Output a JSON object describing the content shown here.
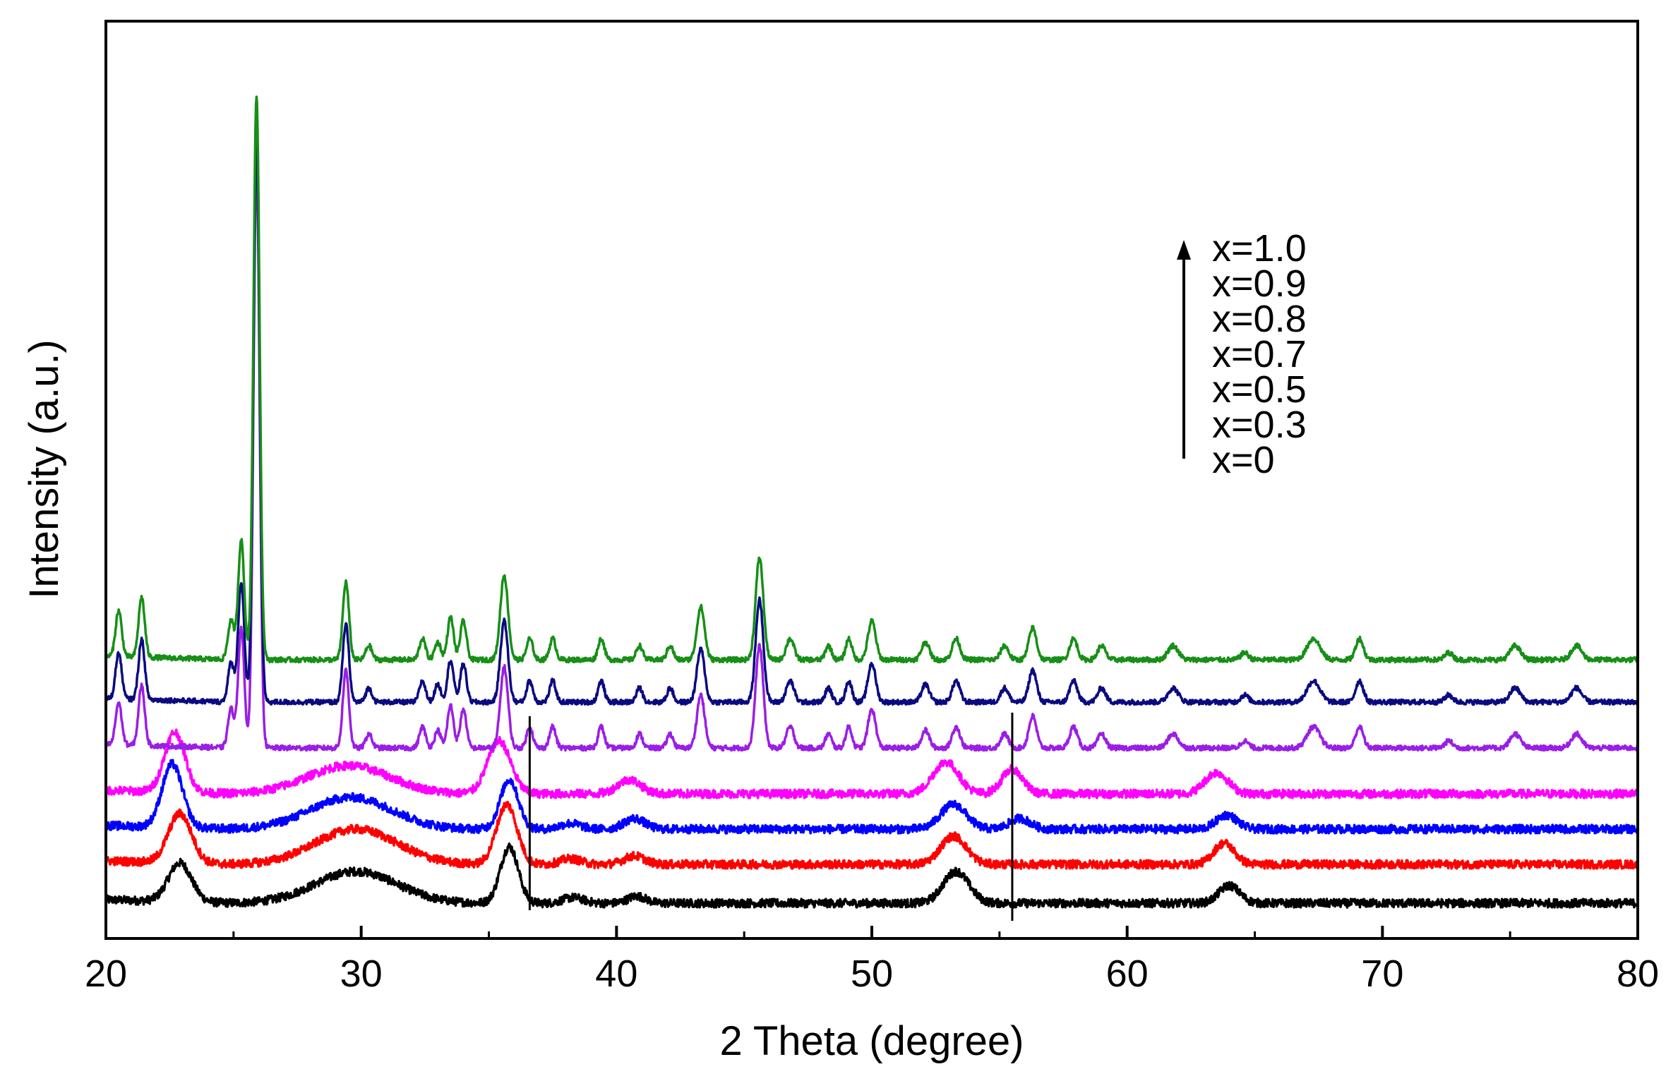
{
  "chart_data": {
    "type": "line",
    "xlabel": "2 Theta (degree)",
    "ylabel": "Intensity (a.u.)",
    "xlim": [
      20,
      80
    ],
    "x_ticks": [
      "20",
      "30",
      "40",
      "50",
      "60",
      "70",
      "80"
    ],
    "y_ticks": [],
    "grid": false,
    "legend_position": "top-right",
    "legend_arrow": "up",
    "legend_entries": [
      "x=1.0",
      "x=0.9",
      "x=0.8",
      "x=0.7",
      "x=0.5",
      "x=0.3",
      "x=0"
    ],
    "reference_lines_x": [
      36.6,
      55.5
    ],
    "series": [
      {
        "name": "x=0",
        "color": "#000000",
        "baseline": 0.0,
        "profile": "amorphous",
        "peaks": [
          [
            22.9,
            0.55,
            0.45
          ],
          [
            29.8,
            0.45,
            1.6
          ],
          [
            35.8,
            0.8,
            0.35
          ],
          [
            38.3,
            0.08,
            0.4
          ],
          [
            40.8,
            0.1,
            0.35
          ],
          [
            53.3,
            0.45,
            0.5
          ],
          [
            64.0,
            0.25,
            0.4
          ]
        ]
      },
      {
        "name": "x=0.3",
        "color": "#ff0000",
        "baseline": 0.55,
        "profile": "amorphous",
        "peaks": [
          [
            22.9,
            0.7,
            0.45
          ],
          [
            29.8,
            0.5,
            1.6
          ],
          [
            35.7,
            0.85,
            0.4
          ],
          [
            38.2,
            0.08,
            0.4
          ],
          [
            40.7,
            0.12,
            0.4
          ],
          [
            53.2,
            0.4,
            0.5
          ],
          [
            63.8,
            0.3,
            0.4
          ]
        ]
      },
      {
        "name": "x=0.5",
        "color": "#0000ff",
        "baseline": 1.05,
        "profile": "amorphous",
        "peaks": [
          [
            22.6,
            0.9,
            0.4
          ],
          [
            29.6,
            0.45,
            1.6
          ],
          [
            35.8,
            0.7,
            0.35
          ],
          [
            38.2,
            0.08,
            0.4
          ],
          [
            40.7,
            0.15,
            0.4
          ],
          [
            53.2,
            0.35,
            0.5
          ],
          [
            55.8,
            0.15,
            0.4
          ],
          [
            63.9,
            0.2,
            0.4
          ]
        ]
      },
      {
        "name": "x=0.7",
        "color": "#ff00ff",
        "baseline": 1.55,
        "profile": "amorphous",
        "peaks": [
          [
            22.7,
            0.85,
            0.4
          ],
          [
            29.5,
            0.4,
            1.6
          ],
          [
            35.4,
            0.75,
            0.45
          ],
          [
            40.5,
            0.2,
            0.45
          ],
          [
            52.9,
            0.45,
            0.5
          ],
          [
            55.5,
            0.35,
            0.4
          ],
          [
            63.5,
            0.3,
            0.45
          ]
        ]
      },
      {
        "name": "x=0.8",
        "color": "#9a1ee6",
        "baseline": 2.2,
        "profile": "crystalline",
        "peaks": [
          [
            20.5,
            0.6,
            0.12
          ],
          [
            21.4,
            0.85,
            0.12
          ],
          [
            24.9,
            0.55,
            0.12
          ],
          [
            25.3,
            1.7,
            0.12
          ],
          [
            25.9,
            8.3,
            0.12
          ],
          [
            29.4,
            1.1,
            0.12
          ],
          [
            30.3,
            0.2,
            0.12
          ],
          [
            32.4,
            0.3,
            0.12
          ],
          [
            33.0,
            0.25,
            0.12
          ],
          [
            33.5,
            0.6,
            0.12
          ],
          [
            34.0,
            0.55,
            0.12
          ],
          [
            35.6,
            1.15,
            0.15
          ],
          [
            36.6,
            0.3,
            0.12
          ],
          [
            37.5,
            0.3,
            0.12
          ],
          [
            39.4,
            0.3,
            0.12
          ],
          [
            40.9,
            0.2,
            0.12
          ],
          [
            42.1,
            0.2,
            0.12
          ],
          [
            43.3,
            0.75,
            0.15
          ],
          [
            45.6,
            1.45,
            0.15
          ],
          [
            46.8,
            0.3,
            0.15
          ],
          [
            48.3,
            0.2,
            0.12
          ],
          [
            49.1,
            0.3,
            0.12
          ],
          [
            50.0,
            0.55,
            0.15
          ],
          [
            52.1,
            0.25,
            0.15
          ],
          [
            53.3,
            0.3,
            0.15
          ],
          [
            55.2,
            0.2,
            0.15
          ],
          [
            56.3,
            0.45,
            0.15
          ],
          [
            57.9,
            0.3,
            0.15
          ],
          [
            59.0,
            0.2,
            0.15
          ],
          [
            61.8,
            0.2,
            0.2
          ],
          [
            64.6,
            0.1,
            0.15
          ],
          [
            67.3,
            0.3,
            0.25
          ],
          [
            69.1,
            0.3,
            0.15
          ],
          [
            72.6,
            0.1,
            0.15
          ],
          [
            75.2,
            0.2,
            0.2
          ],
          [
            77.6,
            0.2,
            0.2
          ]
        ]
      },
      {
        "name": "x=0.9",
        "color": "#0a0a80",
        "baseline": 2.85,
        "profile": "crystalline",
        "peaks": [
          [
            20.5,
            0.65,
            0.12
          ],
          [
            21.4,
            0.85,
            0.12
          ],
          [
            24.9,
            0.55,
            0.12
          ],
          [
            25.3,
            1.7,
            0.12
          ],
          [
            25.9,
            8.0,
            0.12
          ],
          [
            29.4,
            1.1,
            0.12
          ],
          [
            30.3,
            0.2,
            0.12
          ],
          [
            32.4,
            0.3,
            0.12
          ],
          [
            33.0,
            0.25,
            0.12
          ],
          [
            33.5,
            0.6,
            0.12
          ],
          [
            34.0,
            0.55,
            0.12
          ],
          [
            35.6,
            1.15,
            0.15
          ],
          [
            36.6,
            0.3,
            0.12
          ],
          [
            37.5,
            0.3,
            0.12
          ],
          [
            39.4,
            0.3,
            0.12
          ],
          [
            40.9,
            0.2,
            0.12
          ],
          [
            42.1,
            0.2,
            0.12
          ],
          [
            43.3,
            0.75,
            0.15
          ],
          [
            45.6,
            1.45,
            0.15
          ],
          [
            46.8,
            0.3,
            0.15
          ],
          [
            48.3,
            0.2,
            0.12
          ],
          [
            49.1,
            0.3,
            0.12
          ],
          [
            50.0,
            0.55,
            0.15
          ],
          [
            52.1,
            0.25,
            0.15
          ],
          [
            53.3,
            0.3,
            0.15
          ],
          [
            55.2,
            0.2,
            0.15
          ],
          [
            56.3,
            0.45,
            0.15
          ],
          [
            57.9,
            0.3,
            0.15
          ],
          [
            59.0,
            0.2,
            0.15
          ],
          [
            61.8,
            0.2,
            0.2
          ],
          [
            64.6,
            0.1,
            0.15
          ],
          [
            67.3,
            0.3,
            0.25
          ],
          [
            69.1,
            0.3,
            0.15
          ],
          [
            72.6,
            0.1,
            0.15
          ],
          [
            75.2,
            0.2,
            0.2
          ],
          [
            77.6,
            0.2,
            0.2
          ]
        ]
      },
      {
        "name": "x=1.0",
        "color": "#178f17",
        "baseline": 3.45,
        "profile": "crystalline",
        "peaks": [
          [
            20.5,
            0.65,
            0.12
          ],
          [
            21.4,
            0.85,
            0.12
          ],
          [
            24.9,
            0.55,
            0.12
          ],
          [
            25.3,
            1.7,
            0.12
          ],
          [
            25.9,
            8.0,
            0.12
          ],
          [
            29.4,
            1.1,
            0.12
          ],
          [
            30.3,
            0.2,
            0.12
          ],
          [
            32.4,
            0.3,
            0.12
          ],
          [
            33.0,
            0.25,
            0.12
          ],
          [
            33.5,
            0.6,
            0.12
          ],
          [
            34.0,
            0.55,
            0.12
          ],
          [
            35.6,
            1.2,
            0.15
          ],
          [
            36.6,
            0.3,
            0.12
          ],
          [
            37.5,
            0.3,
            0.12
          ],
          [
            39.4,
            0.3,
            0.12
          ],
          [
            40.9,
            0.2,
            0.12
          ],
          [
            42.1,
            0.2,
            0.12
          ],
          [
            43.3,
            0.75,
            0.15
          ],
          [
            45.6,
            1.45,
            0.15
          ],
          [
            46.8,
            0.3,
            0.15
          ],
          [
            48.3,
            0.2,
            0.12
          ],
          [
            49.1,
            0.3,
            0.12
          ],
          [
            50.0,
            0.55,
            0.15
          ],
          [
            52.1,
            0.25,
            0.15
          ],
          [
            53.3,
            0.3,
            0.15
          ],
          [
            55.2,
            0.2,
            0.15
          ],
          [
            56.3,
            0.45,
            0.15
          ],
          [
            57.9,
            0.3,
            0.15
          ],
          [
            59.0,
            0.2,
            0.15
          ],
          [
            61.8,
            0.2,
            0.2
          ],
          [
            64.6,
            0.1,
            0.15
          ],
          [
            67.3,
            0.3,
            0.25
          ],
          [
            69.1,
            0.3,
            0.15
          ],
          [
            72.6,
            0.1,
            0.15
          ],
          [
            75.2,
            0.2,
            0.2
          ],
          [
            77.6,
            0.2,
            0.2
          ]
        ]
      }
    ]
  }
}
